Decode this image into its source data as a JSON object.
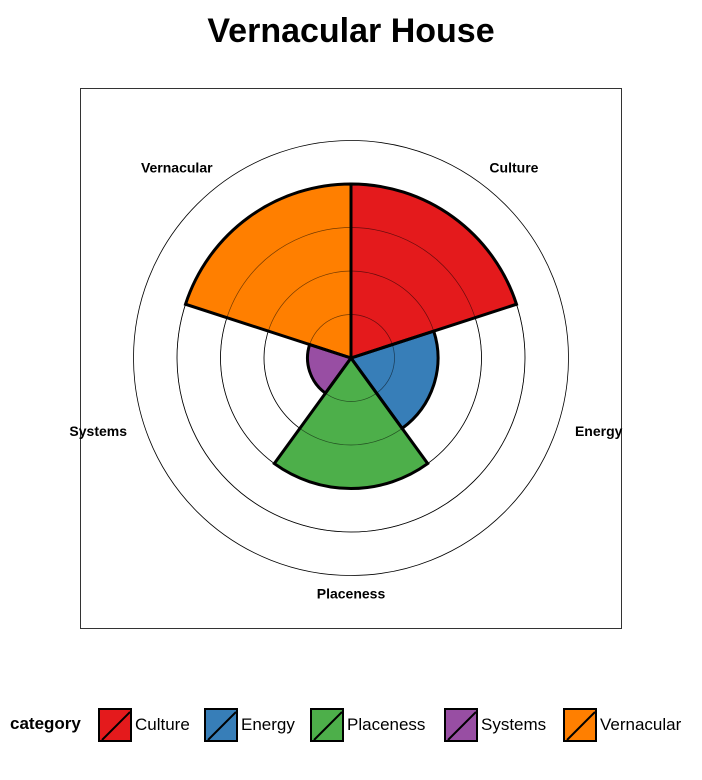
{
  "chart_data": {
    "type": "polar-bar",
    "title": "Vernacular House",
    "categories": [
      "Culture",
      "Energy",
      "Placeness",
      "Systems",
      "Vernacular"
    ],
    "values": [
      4,
      2,
      3,
      1,
      4
    ],
    "rlim": [
      0,
      5
    ],
    "grid_rings": [
      1,
      2,
      3,
      4,
      5
    ],
    "colors": {
      "Culture": "#e41a1c",
      "Energy": "#377eb8",
      "Placeness": "#4daf4a",
      "Systems": "#984ea3",
      "Vernacular": "#ff7f00"
    },
    "legend": {
      "title": "category",
      "placement": "bottom",
      "entries": [
        "Culture",
        "Energy",
        "Placeness",
        "Systems",
        "Vernacular"
      ]
    }
  }
}
